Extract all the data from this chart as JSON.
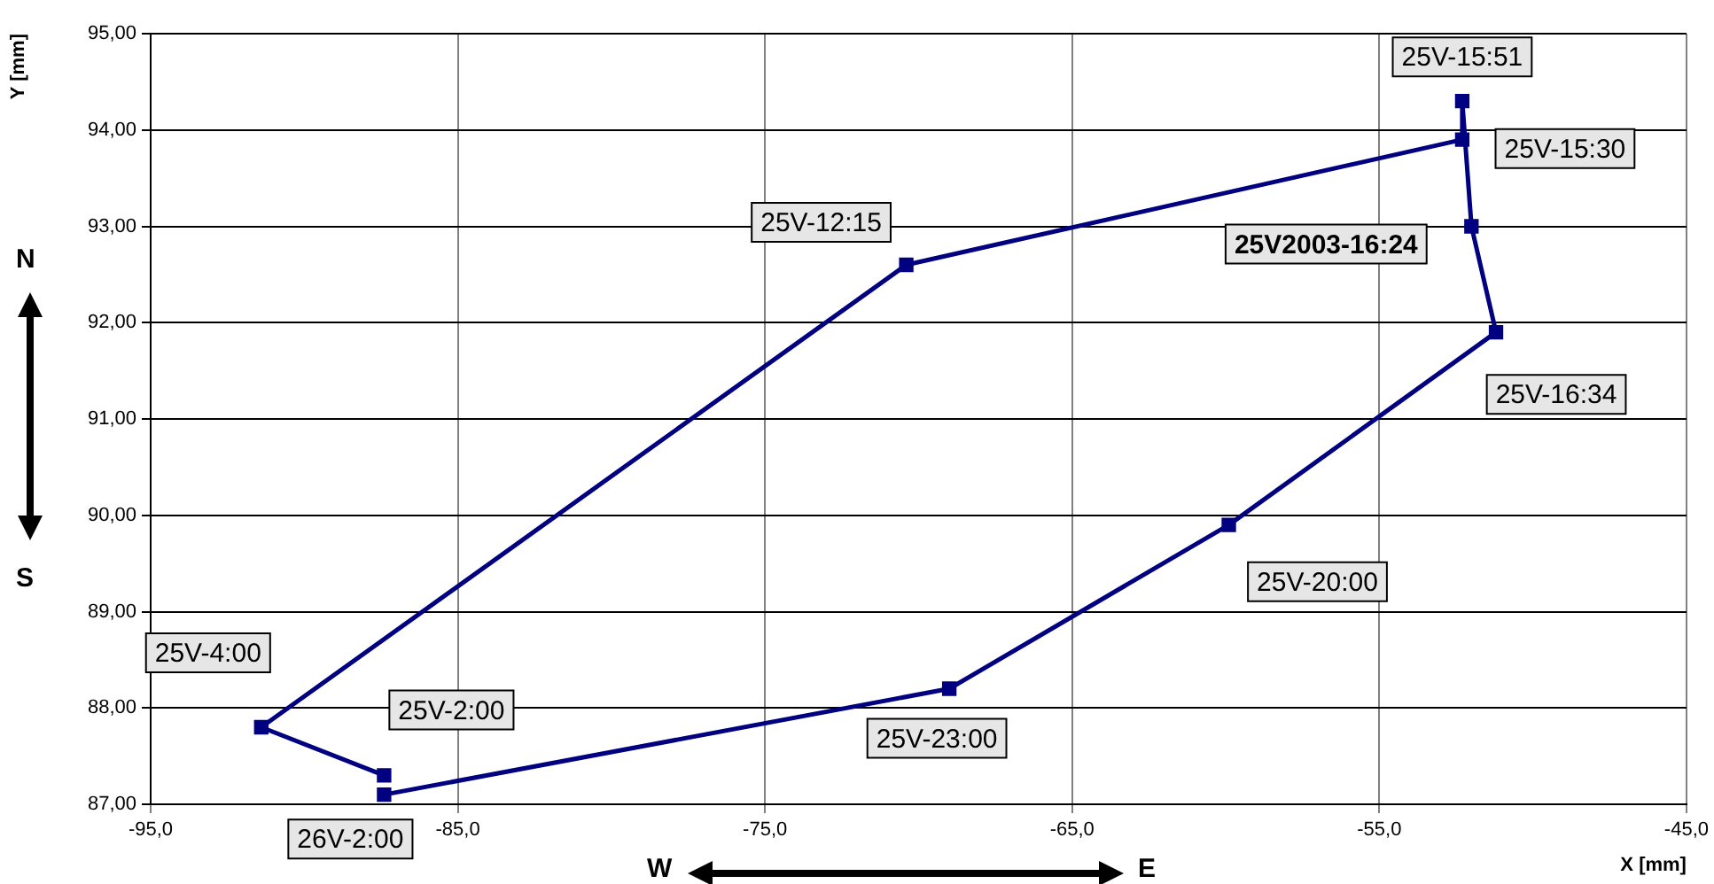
{
  "chart_data": {
    "type": "line",
    "xlabel": "X [mm]",
    "ylabel": "Y [mm]",
    "xlim": [
      -95,
      -45
    ],
    "xticks": [
      {
        "value": -95,
        "label": "-95,0"
      },
      {
        "value": -85,
        "label": "-85,0"
      },
      {
        "value": -75,
        "label": "-75,0"
      },
      {
        "value": -65,
        "label": "-65,0"
      },
      {
        "value": -55,
        "label": "-55,0"
      },
      {
        "value": -45,
        "label": "-45,0"
      }
    ],
    "ylim": [
      87,
      95
    ],
    "yticks": [
      {
        "value": 87,
        "label": "87,00"
      },
      {
        "value": 88,
        "label": "88,00"
      },
      {
        "value": 89,
        "label": "89,00"
      },
      {
        "value": 90,
        "label": "90,00"
      },
      {
        "value": 91,
        "label": "91,00"
      },
      {
        "value": 92,
        "label": "92,00"
      },
      {
        "value": 93,
        "label": "93,00"
      },
      {
        "value": 94,
        "label": "94,00"
      },
      {
        "value": 95,
        "label": "95,00"
      }
    ],
    "series": [
      {
        "color": "#000080",
        "x": [
          -87.4,
          -91.4,
          -70.4,
          -52.3,
          -52.3,
          -52.0,
          -51.2,
          -59.9,
          -69.0,
          -87.4
        ],
        "values": [
          87.3,
          87.8,
          92.6,
          93.9,
          94.3,
          93.0,
          91.9,
          89.9,
          88.2,
          87.1
        ]
      }
    ],
    "marker": "square",
    "line_style": "solid",
    "grid": true,
    "legend": false,
    "annotations": [
      {
        "text": "25V-2:00",
        "x": -87.4,
        "y": 87.3
      },
      {
        "text": "25V-4:00",
        "x": -91.4,
        "y": 87.8
      },
      {
        "text": "25V-12:15",
        "x": -70.4,
        "y": 92.6
      },
      {
        "text": "25V-15:30",
        "x": -52.3,
        "y": 93.9
      },
      {
        "text": "25V-15:51",
        "x": -52.3,
        "y": 94.3
      },
      {
        "text": "25V2003-16:24",
        "x": -52.0,
        "y": 93.0
      },
      {
        "text": "25V-16:34",
        "x": -51.2,
        "y": 91.9
      },
      {
        "text": "25V-20:00",
        "x": -59.9,
        "y": 89.9
      },
      {
        "text": "25V-23:00",
        "x": -69.0,
        "y": 88.2
      },
      {
        "text": "26V-2:00",
        "x": -87.4,
        "y": 87.1
      },
      "N",
      "S",
      "W",
      "E"
    ]
  }
}
